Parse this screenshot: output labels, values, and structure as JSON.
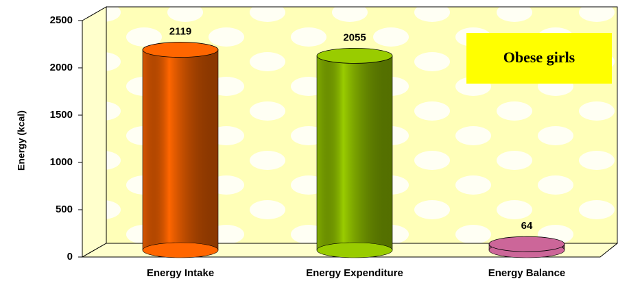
{
  "chart_data": {
    "type": "bar3d",
    "y_label": "Energy (kcal)",
    "legend_box": "Obese girls",
    "categories": [
      "Energy Intake",
      "Energy Expenditure",
      "Energy Balance"
    ],
    "values": [
      2119,
      2055,
      64
    ],
    "colors": [
      "#ff6600",
      "#99cc00",
      "#cc6699"
    ],
    "ylim": [
      0,
      2500
    ],
    "yticks": [
      0,
      500,
      1000,
      1500,
      2000,
      2500
    ]
  }
}
